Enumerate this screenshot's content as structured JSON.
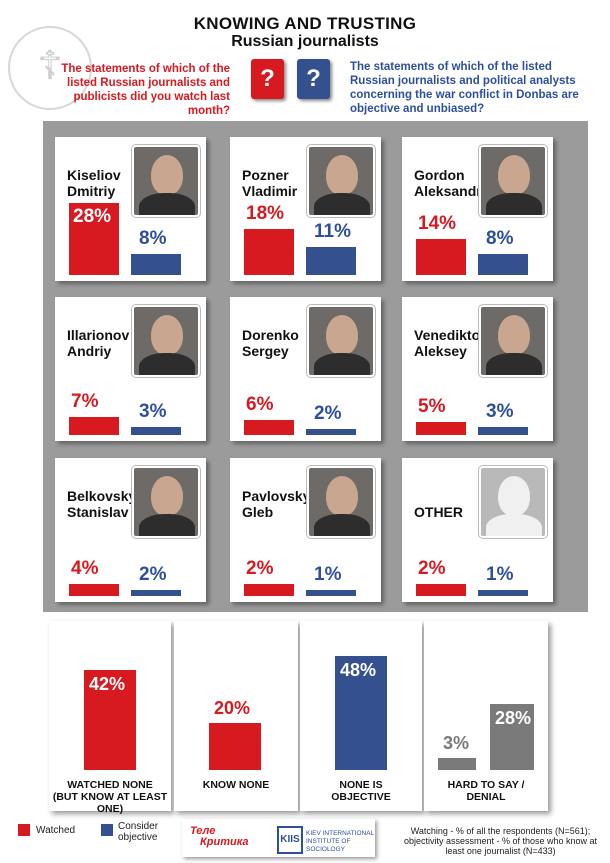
{
  "header": {
    "title_line1": "KNOWING AND TRUSTING",
    "title_line2": "Russian journalists",
    "question_left": "The statements of which of the listed Russian journalists and publicists did you watch last month?",
    "question_right": "The statements of which of the listed Russian journalists and political analysts concerning the war conflict in Donbas are objective and unbiased?",
    "qmark": "?"
  },
  "colors": {
    "watched": "#d71920",
    "objective": "#35508f",
    "gray": "#7a7a7a"
  },
  "chart_data": [
    {
      "type": "bar",
      "categories": [
        "Kiseliov Dmitriy",
        "Pozner Vladimir",
        "Gordon Aleksandr",
        "Illarionov Andriy",
        "Dorenko Sergey",
        "Venediktov Aleksey",
        "Belkovsky Stanislav",
        "Pavlovsky Gleb",
        "OTHER"
      ],
      "name_lines": [
        [
          "Kiseliov",
          "Dmitriy"
        ],
        [
          "Pozner",
          "Vladimir"
        ],
        [
          "Gordon",
          "Aleksandr"
        ],
        [
          "Illarionov",
          "Andriy"
        ],
        [
          "Dorenko",
          "Sergey"
        ],
        [
          "Venediktov",
          "Aleksey"
        ],
        [
          "Belkovsky",
          "Stanislav"
        ],
        [
          "Pavlovsky",
          "Gleb"
        ],
        [
          "OTHER",
          ""
        ]
      ],
      "series": [
        {
          "name": "Watched",
          "values": [
            28,
            18,
            14,
            7,
            6,
            5,
            4,
            2,
            2
          ],
          "labels": [
            "28%",
            "18%",
            "14%",
            "7%",
            "6%",
            "5%",
            "4%",
            "2%",
            "2%"
          ]
        },
        {
          "name": "Consider objective",
          "values": [
            8,
            11,
            8,
            3,
            2,
            3,
            2,
            1,
            1
          ],
          "labels": [
            "8%",
            "11%",
            "8%",
            "3%",
            "2%",
            "3%",
            "2%",
            "1%",
            "1%"
          ]
        }
      ]
    },
    {
      "type": "bar",
      "categories": [
        "WATCHED NONE (BUT KNOW AT LEAST ONE)",
        "KNOW NONE",
        "NONE IS OBJECTIVE",
        "HARD TO SAY / DENIAL"
      ],
      "caption_lines": [
        [
          "WATCHED NONE",
          "(BUT KNOW AT LEAST ONE)"
        ],
        [
          "KNOW NONE",
          ""
        ],
        [
          "NONE IS",
          "OBJECTIVE"
        ],
        [
          "HARD TO SAY /",
          "DENIAL"
        ]
      ],
      "bars": [
        {
          "value": 42,
          "label": "42%",
          "color": "#d71920"
        },
        {
          "value": 20,
          "label": "20%",
          "color": "#d71920"
        },
        {
          "value": 48,
          "label": "48%",
          "color": "#35508f"
        },
        {
          "value": 3,
          "label": "3%",
          "color": "#7a7a7a"
        },
        {
          "value": 28,
          "label": "28%",
          "color": "#7a7a7a"
        }
      ]
    }
  ],
  "legend": {
    "watched": "Watched",
    "objective_line1": "Consider",
    "objective_line2": "objective"
  },
  "footer": {
    "logo_tele": "Теле",
    "logo_krytyka": "Критика",
    "kiis_mark": "KIIS",
    "kiis_line1": "KIEV INTERNATIONAL",
    "kiis_line2": "INSTITUTE OF SOCIOLOGY",
    "note": "Watching - % of all the respondents (N=561); objectivity assessment - % of those who know at least one journalist (N=433)"
  }
}
